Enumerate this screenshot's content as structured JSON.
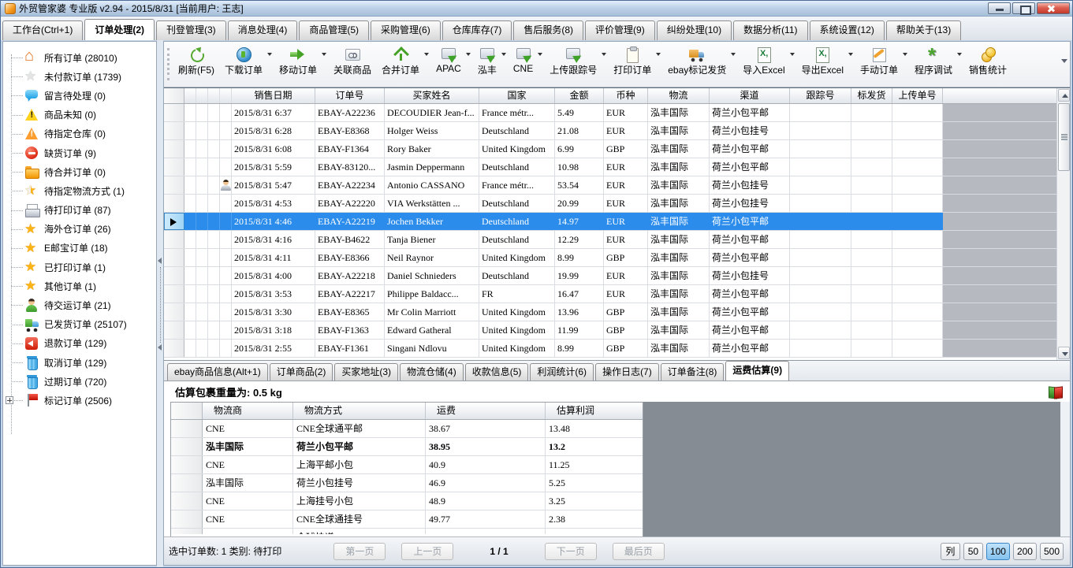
{
  "titlebar": {
    "title": "外贸管家婆 专业版 v2.94 - 2015/8/31 [当前用户: 王志]"
  },
  "menu_tabs": [
    {
      "label": "工作台(Ctrl+1)",
      "active": false
    },
    {
      "label": "订单处理(2)",
      "active": true
    },
    {
      "label": "刊登管理(3)",
      "active": false
    },
    {
      "label": "消息处理(4)",
      "active": false
    },
    {
      "label": "商品管理(5)",
      "active": false
    },
    {
      "label": "采购管理(6)",
      "active": false
    },
    {
      "label": "仓库库存(7)",
      "active": false
    },
    {
      "label": "售后服务(8)",
      "active": false
    },
    {
      "label": "评价管理(9)",
      "active": false
    },
    {
      "label": "纠纷处理(10)",
      "active": false
    },
    {
      "label": "数据分析(11)",
      "active": false
    },
    {
      "label": "系统设置(12)",
      "active": false
    },
    {
      "label": "帮助关于(13)",
      "active": false
    }
  ],
  "sidebar": {
    "items": [
      {
        "label": "所有订单 (28010)",
        "icon": "home"
      },
      {
        "label": "未付款订单 (1739)",
        "icon": "star-silver"
      },
      {
        "label": "留言待处理 (0)",
        "icon": "chat"
      },
      {
        "label": "商品未知 (0)",
        "icon": "warn-yellow"
      },
      {
        "label": "待指定仓库 (0)",
        "icon": "warn-orange"
      },
      {
        "label": "缺货订单 (9)",
        "icon": "noentry"
      },
      {
        "label": "待合并订单 (0)",
        "icon": "folder"
      },
      {
        "label": "待指定物流方式 (1)",
        "icon": "star-half"
      },
      {
        "label": "待打印订单 (87)",
        "icon": "printer"
      },
      {
        "label": "海外仓订单 (26)",
        "icon": "star-gold"
      },
      {
        "label": "E邮宝订单 (18)",
        "icon": "star-gold"
      },
      {
        "label": "已打印订单 (1)",
        "icon": "star-gold"
      },
      {
        "label": "其他订单 (1)",
        "icon": "star-gold"
      },
      {
        "label": "待交运订单 (21)",
        "icon": "person"
      },
      {
        "label": "已发货订单 (25107)",
        "icon": "truck"
      },
      {
        "label": "退款订单 (129)",
        "icon": "refund"
      },
      {
        "label": "取消订单 (129)",
        "icon": "trash"
      },
      {
        "label": "过期订单 (720)",
        "icon": "trash"
      },
      {
        "label": "标记订单 (2506)",
        "icon": "flag",
        "expander": true
      }
    ]
  },
  "toolbar": {
    "buttons": [
      {
        "label": "刷新(F5)",
        "icon": "tb-refresh",
        "menu": false
      },
      {
        "label": "下载订单",
        "icon": "tb-globe",
        "menu": true
      },
      {
        "label": "移动订单",
        "icon": "tb-move",
        "menu": true
      },
      {
        "label": "关联商品",
        "icon": "tb-link",
        "menu": false
      },
      {
        "label": "合并订单",
        "icon": "tb-merge",
        "menu": true
      },
      {
        "label": "APAC",
        "icon": "tb-send",
        "menu": true
      },
      {
        "label": "泓丰",
        "icon": "tb-send",
        "menu": true
      },
      {
        "label": "CNE",
        "icon": "tb-send",
        "menu": true
      },
      {
        "label": "上传跟踪号",
        "icon": "tb-send",
        "menu": true
      },
      {
        "label": "打印订单",
        "icon": "tb-print",
        "menu": true
      },
      {
        "label": "ebay标记发货",
        "icon": "tb-truck",
        "menu": true
      },
      {
        "label": "导入Excel",
        "icon": "tb-excel",
        "menu": true
      },
      {
        "label": "导出Excel",
        "icon": "tb-excel",
        "menu": true
      },
      {
        "label": "手动订单",
        "icon": "tb-manual",
        "menu": true
      },
      {
        "label": "程序调试",
        "icon": "tb-debug",
        "menu": true
      },
      {
        "label": "销售统计",
        "icon": "tb-stats",
        "menu": false
      }
    ]
  },
  "orders": {
    "columns": [
      "销售日期",
      "订单号",
      "买家姓名",
      "国家",
      "金额",
      "币种",
      "物流",
      "渠道",
      "跟踪号",
      "标发货",
      "上传单号"
    ],
    "rows": [
      {
        "date": "2015/8/31 6:37",
        "order_no": "EBAY-A22236",
        "buyer": "DECOUDIER Jean-f...",
        "country": "France métr...",
        "amount": "5.49",
        "currency": "EUR",
        "logistics": "泓丰国际",
        "channel": "荷兰小包平邮",
        "tracking": "",
        "ship_flag": "",
        "upload_no": "",
        "selected": false,
        "buyer_icon": false
      },
      {
        "date": "2015/8/31 6:28",
        "order_no": "EBAY-E8368",
        "buyer": "Holger Weiss",
        "country": "Deutschland",
        "amount": "21.08",
        "currency": "EUR",
        "logistics": "泓丰国际",
        "channel": "荷兰小包挂号",
        "tracking": "",
        "ship_flag": "",
        "upload_no": "",
        "selected": false,
        "buyer_icon": false
      },
      {
        "date": "2015/8/31 6:08",
        "order_no": "EBAY-F1364",
        "buyer": "Rory Baker",
        "country": "United Kingdom",
        "amount": "6.99",
        "currency": "GBP",
        "logistics": "泓丰国际",
        "channel": "荷兰小包平邮",
        "tracking": "",
        "ship_flag": "",
        "upload_no": "",
        "selected": false,
        "buyer_icon": false
      },
      {
        "date": "2015/8/31 5:59",
        "order_no": "EBAY-83120...",
        "buyer": "Jasmin Deppermann",
        "country": "Deutschland",
        "amount": "10.98",
        "currency": "EUR",
        "logistics": "泓丰国际",
        "channel": "荷兰小包平邮",
        "tracking": "",
        "ship_flag": "",
        "upload_no": "",
        "selected": false,
        "buyer_icon": false
      },
      {
        "date": "2015/8/31 5:47",
        "order_no": "EBAY-A22234",
        "buyer": "Antonio CASSANO",
        "country": "France métr...",
        "amount": "53.54",
        "currency": "EUR",
        "logistics": "泓丰国际",
        "channel": "荷兰小包挂号",
        "tracking": "",
        "ship_flag": "",
        "upload_no": "",
        "selected": false,
        "buyer_icon": true
      },
      {
        "date": "2015/8/31 4:53",
        "order_no": "EBAY-A22220",
        "buyer": "VIA Werkstätten ...",
        "country": "Deutschland",
        "amount": "20.99",
        "currency": "EUR",
        "logistics": "泓丰国际",
        "channel": "荷兰小包挂号",
        "tracking": "",
        "ship_flag": "",
        "upload_no": "",
        "selected": false,
        "buyer_icon": false
      },
      {
        "date": "2015/8/31 4:46",
        "order_no": "EBAY-A22219",
        "buyer": "Jochen Bekker",
        "country": "Deutschland",
        "amount": "14.97",
        "currency": "EUR",
        "logistics": "泓丰国际",
        "channel": "荷兰小包平邮",
        "tracking": "",
        "ship_flag": "",
        "upload_no": "",
        "selected": true,
        "buyer_icon": false
      },
      {
        "date": "2015/8/31 4:16",
        "order_no": "EBAY-B4622",
        "buyer": "Tanja Biener",
        "country": "Deutschland",
        "amount": "12.29",
        "currency": "EUR",
        "logistics": "泓丰国际",
        "channel": "荷兰小包平邮",
        "tracking": "",
        "ship_flag": "",
        "upload_no": "",
        "selected": false,
        "buyer_icon": false
      },
      {
        "date": "2015/8/31 4:11",
        "order_no": "EBAY-E8366",
        "buyer": "Neil Raynor",
        "country": "United Kingdom",
        "amount": "8.99",
        "currency": "GBP",
        "logistics": "泓丰国际",
        "channel": "荷兰小包平邮",
        "tracking": "",
        "ship_flag": "",
        "upload_no": "",
        "selected": false,
        "buyer_icon": false
      },
      {
        "date": "2015/8/31 4:00",
        "order_no": "EBAY-A22218",
        "buyer": "Daniel Schnieders",
        "country": "Deutschland",
        "amount": "19.99",
        "currency": "EUR",
        "logistics": "泓丰国际",
        "channel": "荷兰小包挂号",
        "tracking": "",
        "ship_flag": "",
        "upload_no": "",
        "selected": false,
        "buyer_icon": false
      },
      {
        "date": "2015/8/31 3:53",
        "order_no": "EBAY-A22217",
        "buyer": "Philippe Baldacc...",
        "country": "FR",
        "amount": "16.47",
        "currency": "EUR",
        "logistics": "泓丰国际",
        "channel": "荷兰小包平邮",
        "tracking": "",
        "ship_flag": "",
        "upload_no": "",
        "selected": false,
        "buyer_icon": false
      },
      {
        "date": "2015/8/31 3:30",
        "order_no": "EBAY-E8365",
        "buyer": "Mr Colin Marriott",
        "country": "United Kingdom",
        "amount": "13.96",
        "currency": "GBP",
        "logistics": "泓丰国际",
        "channel": "荷兰小包平邮",
        "tracking": "",
        "ship_flag": "",
        "upload_no": "",
        "selected": false,
        "buyer_icon": false
      },
      {
        "date": "2015/8/31 3:18",
        "order_no": "EBAY-F1363",
        "buyer": "Edward Gatheral",
        "country": "United Kingdom",
        "amount": "11.99",
        "currency": "GBP",
        "logistics": "泓丰国际",
        "channel": "荷兰小包平邮",
        "tracking": "",
        "ship_flag": "",
        "upload_no": "",
        "selected": false,
        "buyer_icon": false
      },
      {
        "date": "2015/8/31 2:55",
        "order_no": "EBAY-F1361",
        "buyer": "Singani Ndlovu",
        "country": "United Kingdom",
        "amount": "8.99",
        "currency": "GBP",
        "logistics": "泓丰国际",
        "channel": "荷兰小包平邮",
        "tracking": "",
        "ship_flag": "",
        "upload_no": "",
        "selected": false,
        "buyer_icon": false
      }
    ]
  },
  "subtabs": [
    {
      "label": "ebay商品信息(Alt+1)",
      "active": false
    },
    {
      "label": "订单商品(2)",
      "active": false
    },
    {
      "label": "买家地址(3)",
      "active": false
    },
    {
      "label": "物流仓储(4)",
      "active": false
    },
    {
      "label": "收款信息(5)",
      "active": false
    },
    {
      "label": "利润统计(6)",
      "active": false
    },
    {
      "label": "操作日志(7)",
      "active": false
    },
    {
      "label": "订单备注(8)",
      "active": false
    },
    {
      "label": "运费估算(9)",
      "active": true
    }
  ],
  "freight": {
    "weight_text": "估算包裹重量为: 0.5 kg",
    "columns": [
      "物流商",
      "物流方式",
      "运费",
      "估算利润"
    ],
    "rows": [
      {
        "carrier": "CNE",
        "method": "CNE全球通平邮",
        "fee": "38.67",
        "profit": "13.48",
        "marker": true,
        "bold": false,
        "partial": false
      },
      {
        "carrier": "泓丰国际",
        "method": "荷兰小包平邮",
        "fee": "38.95",
        "profit": "13.2",
        "marker": false,
        "bold": true,
        "partial": false
      },
      {
        "carrier": "CNE",
        "method": "上海平邮小包",
        "fee": "40.9",
        "profit": "11.25",
        "marker": false,
        "bold": false,
        "partial": false
      },
      {
        "carrier": "泓丰国际",
        "method": "荷兰小包挂号",
        "fee": "46.9",
        "profit": "5.25",
        "marker": false,
        "bold": false,
        "partial": false
      },
      {
        "carrier": "CNE",
        "method": "上海挂号小包",
        "fee": "48.9",
        "profit": "3.25",
        "marker": false,
        "bold": false,
        "partial": false
      },
      {
        "carrier": "CNE",
        "method": "CNE全球通挂号",
        "fee": "49.77",
        "profit": "2.38",
        "marker": false,
        "bold": false,
        "partial": false
      },
      {
        "carrier": "CNE",
        "method": "全球快递",
        "fee": "",
        "profit": "",
        "marker": false,
        "bold": false,
        "partial": true
      }
    ]
  },
  "statusbar": {
    "selection_text": "选中订单数: 1 类别: 待打印",
    "pager": {
      "first": "第一页",
      "prev": "上一页",
      "position": "1 / 1",
      "next": "下一页",
      "last": "最后页"
    },
    "page_sizes": [
      {
        "label": "列",
        "active": false
      },
      {
        "label": "50",
        "active": false
      },
      {
        "label": "100",
        "active": true
      },
      {
        "label": "200",
        "active": false
      },
      {
        "label": "500",
        "active": false
      }
    ]
  }
}
